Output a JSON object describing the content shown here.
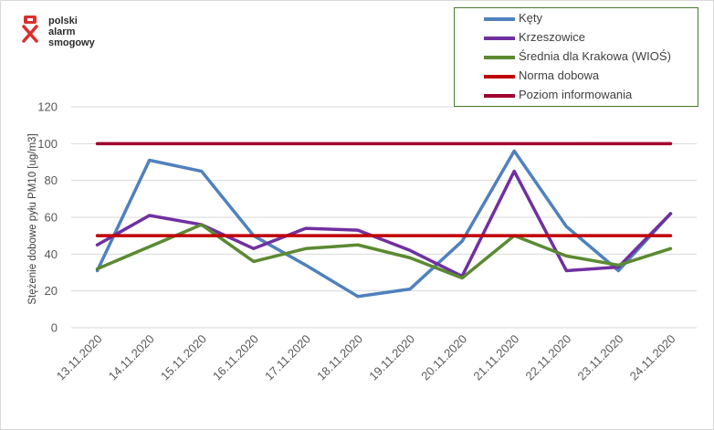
{
  "logo": {
    "lines": [
      "polski",
      "alarm",
      "smogowy"
    ]
  },
  "chart_data": {
    "type": "line",
    "categories": [
      "13.11.2020",
      "14.11.2020",
      "15.11.2020",
      "16.11.2020",
      "17.11.2020",
      "18.11.2020",
      "19.11.2020",
      "20.11.2020",
      "21.11.2020",
      "22.11.2020",
      "23.11.2020",
      "24.11.2020"
    ],
    "ylabel": "Stężenie dobowe pyłu PM10 [ug/m3]",
    "xlabel": "",
    "ylim": [
      0,
      120
    ],
    "yticks": [
      0,
      20,
      40,
      60,
      80,
      100,
      120
    ],
    "grid": true,
    "legend_position": "top-right",
    "series": [
      {
        "name": "Kęty",
        "color": "#4f81bd",
        "values": [
          31,
          91,
          85,
          50,
          34,
          17,
          21,
          47,
          96,
          55,
          31,
          62
        ]
      },
      {
        "name": "Krzeszowice",
        "color": "#7030a0",
        "values": [
          45,
          61,
          56,
          43,
          54,
          53,
          42,
          28,
          85,
          31,
          33,
          62
        ]
      },
      {
        "name": "Średnia dla Krakowa (WIOŚ)",
        "color": "#5b8a32",
        "values": [
          32,
          44,
          56,
          36,
          43,
          45,
          38,
          27,
          50,
          39,
          34,
          43
        ]
      },
      {
        "name": "Norma dobowa",
        "color": "#c00000",
        "values": [
          50,
          50,
          50,
          50,
          50,
          50,
          50,
          50,
          50,
          50,
          50,
          50
        ]
      },
      {
        "name": "Poziom informowania",
        "color": "#a00030",
        "values": [
          100,
          100,
          100,
          100,
          100,
          100,
          100,
          100,
          100,
          100,
          100,
          100
        ]
      }
    ]
  }
}
